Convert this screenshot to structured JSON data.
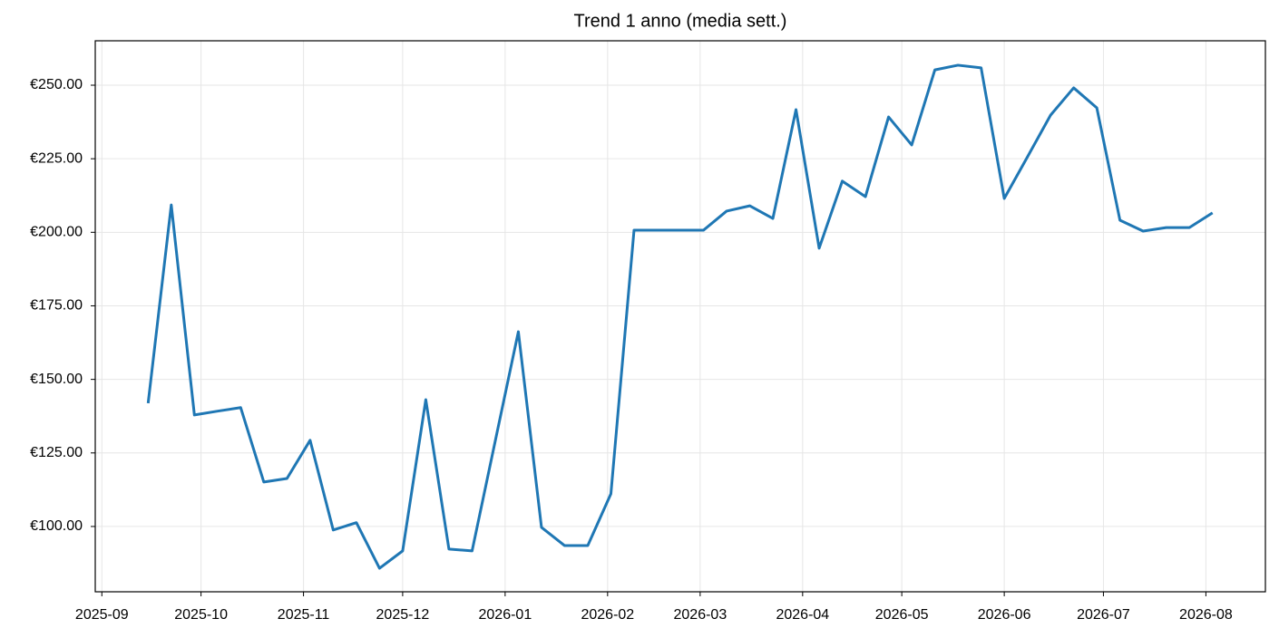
{
  "chart_data": {
    "type": "line",
    "title": "Trend 1 anno (media sett.)",
    "x": [
      "2025-09-15",
      "2025-09-22",
      "2025-09-29",
      "2025-10-06",
      "2025-10-13",
      "2025-10-20",
      "2025-10-27",
      "2025-11-03",
      "2025-11-10",
      "2025-11-17",
      "2025-11-24",
      "2025-12-01",
      "2025-12-08",
      "2025-12-15",
      "2025-12-22",
      "2025-12-29",
      "2026-01-05",
      "2026-01-12",
      "2026-01-19",
      "2026-01-26",
      "2026-02-02",
      "2026-02-09",
      "2026-02-16",
      "2026-02-23",
      "2026-03-02",
      "2026-03-09",
      "2026-03-16",
      "2026-03-23",
      "2026-03-30",
      "2026-04-06",
      "2026-04-13",
      "2026-04-20",
      "2026-04-27",
      "2026-05-04",
      "2026-05-11",
      "2026-05-18",
      "2026-05-25",
      "2026-06-01",
      "2026-06-08",
      "2026-06-15",
      "2026-06-22",
      "2026-06-29",
      "2026-07-06",
      "2026-07-13",
      "2026-07-20",
      "2026-07-27",
      "2026-08-03"
    ],
    "series": [
      {
        "color": "#1f77b4",
        "values": [
          141.9,
          209.3,
          137.9,
          139.2,
          140.4,
          115.1,
          116.3,
          129.3,
          98.8,
          101.3,
          85.8,
          91.7,
          143.1,
          92.3,
          91.7,
          129,
          166.2,
          99.7,
          93.5,
          93.5,
          111.1,
          200.7,
          200.7,
          200.7,
          200.7,
          207.2,
          209.0,
          204.7,
          241.7,
          194.6,
          217.4,
          212.1,
          239.2,
          229.7,
          255.2,
          256.8,
          255.9,
          211.5,
          225.6,
          239.8,
          249.1,
          242.3,
          204.1,
          200.4,
          201.6,
          201.6,
          206.6
        ]
      }
    ],
    "xlim": [
      "2025-08-30",
      "2026-08-19"
    ],
    "xticks": [
      {
        "value": "2025-09-01",
        "label": "2025-09"
      },
      {
        "value": "2025-10-01",
        "label": "2025-10"
      },
      {
        "value": "2025-11-01",
        "label": "2025-11"
      },
      {
        "value": "2025-12-01",
        "label": "2025-12"
      },
      {
        "value": "2026-01-01",
        "label": "2026-01"
      },
      {
        "value": "2026-02-01",
        "label": "2026-02"
      },
      {
        "value": "2026-03-01",
        "label": "2026-03"
      },
      {
        "value": "2026-04-01",
        "label": "2026-04"
      },
      {
        "value": "2026-05-01",
        "label": "2026-05"
      },
      {
        "value": "2026-06-01",
        "label": "2026-06"
      },
      {
        "value": "2026-07-01",
        "label": "2026-07"
      },
      {
        "value": "2026-08-01",
        "label": "2026-08"
      }
    ],
    "ylim": [
      77.8,
      265.1
    ],
    "yticks": [
      {
        "value": 100,
        "label": "€100.00"
      },
      {
        "value": 125,
        "label": "€125.00"
      },
      {
        "value": 150,
        "label": "€150.00"
      },
      {
        "value": 175,
        "label": "€175.00"
      },
      {
        "value": 200,
        "label": "€200.00"
      },
      {
        "value": 225,
        "label": "€225.00"
      },
      {
        "value": 250,
        "label": "€250.00"
      }
    ],
    "grid": true
  }
}
